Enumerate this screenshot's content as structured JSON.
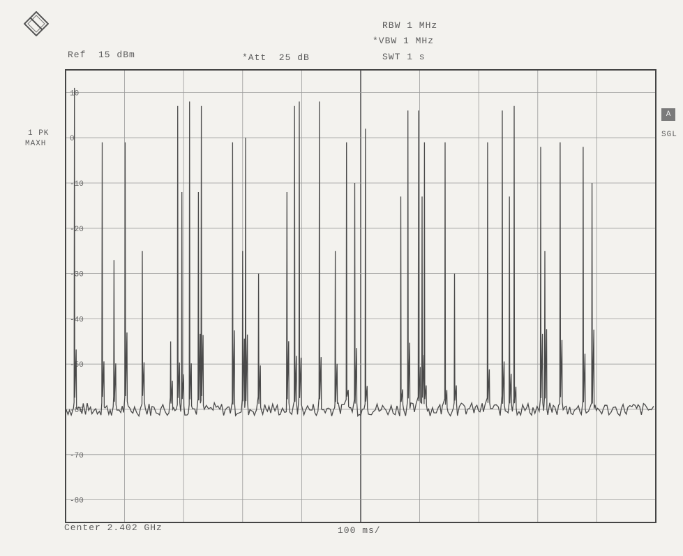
{
  "header": {
    "ref": "Ref  15 dBm",
    "att": "*Att  25 dB",
    "rbw": "RBW 1 MHz",
    "vbw": "*VBW 1 MHz",
    "swt": "SWT 1 s"
  },
  "trace": {
    "label_line1": "1 PK",
    "label_line2": "MAXH",
    "color": "#4a4a4a"
  },
  "side": {
    "badge": "A",
    "mode": "SGL"
  },
  "footer": {
    "center": "Center 2.402 GHz",
    "time_div": "100 ms/"
  },
  "chart_data": {
    "type": "line",
    "xlabel": "",
    "ylabel": "",
    "x_unit": "ms",
    "y_unit": "dBm",
    "xlim": [
      0,
      1000
    ],
    "ylim": [
      -85,
      15
    ],
    "y_ticks": [
      10,
      0,
      -10,
      -20,
      -30,
      -40,
      -50,
      -60,
      -70,
      -80
    ],
    "y_tick_labels": [
      "10",
      "0",
      "-10",
      "-20",
      "-30",
      "-40",
      "-50",
      "-60",
      "-70",
      "-80"
    ],
    "grid": true,
    "noise_floor": -60,
    "series": [
      {
        "peaks": [
          {
            "t": 15,
            "level": 11
          },
          {
            "t": 62,
            "level": -1
          },
          {
            "t": 82,
            "level": -27
          },
          {
            "t": 101,
            "level": -1
          },
          {
            "t": 130,
            "level": -25
          },
          {
            "t": 178,
            "level": -45
          },
          {
            "t": 190,
            "level": 7
          },
          {
            "t": 197,
            "level": -12
          },
          {
            "t": 210,
            "level": 8
          },
          {
            "t": 225,
            "level": -12
          },
          {
            "t": 230,
            "level": 7
          },
          {
            "t": 283,
            "level": -1
          },
          {
            "t": 300,
            "level": -25
          },
          {
            "t": 305,
            "level": 0
          },
          {
            "t": 327,
            "level": -30
          },
          {
            "t": 375,
            "level": -12
          },
          {
            "t": 388,
            "level": 7
          },
          {
            "t": 396,
            "level": 8
          },
          {
            "t": 430,
            "level": 8
          },
          {
            "t": 457,
            "level": -25
          },
          {
            "t": 476,
            "level": -1
          },
          {
            "t": 490,
            "level": -10
          },
          {
            "t": 508,
            "level": 2
          },
          {
            "t": 568,
            "level": -13
          },
          {
            "t": 580,
            "level": 6
          },
          {
            "t": 598,
            "level": 6
          },
          {
            "t": 604,
            "level": -13
          },
          {
            "t": 608,
            "level": -1
          },
          {
            "t": 643,
            "level": -1
          },
          {
            "t": 659,
            "level": -30
          },
          {
            "t": 715,
            "level": -1
          },
          {
            "t": 740,
            "level": 6
          },
          {
            "t": 752,
            "level": -13
          },
          {
            "t": 760,
            "level": 7
          },
          {
            "t": 805,
            "level": -2
          },
          {
            "t": 812,
            "level": -25
          },
          {
            "t": 838,
            "level": -1
          },
          {
            "t": 877,
            "level": -2
          },
          {
            "t": 892,
            "level": -10
          }
        ]
      }
    ]
  }
}
